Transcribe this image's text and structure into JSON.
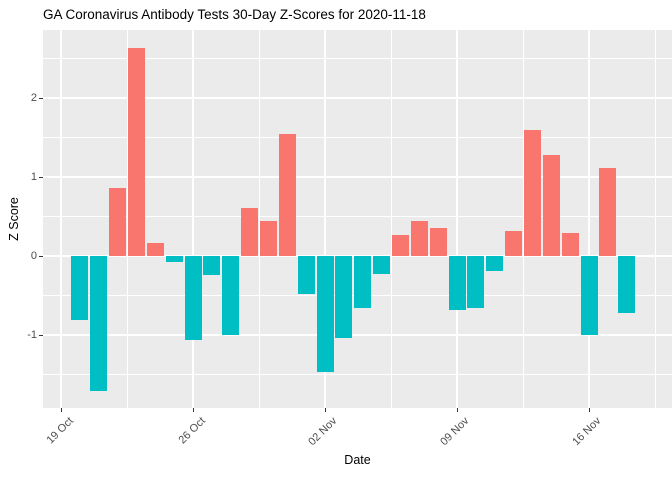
{
  "chart_data": {
    "type": "bar",
    "title": "GA Coronavirus Antibody Tests 30-Day Z-Scores for 2020-11-18",
    "xlabel": "Date",
    "ylabel": "Z Score",
    "categories": [
      "20 Oct",
      "21 Oct",
      "22 Oct",
      "23 Oct",
      "24 Oct",
      "25 Oct",
      "26 Oct",
      "27 Oct",
      "28 Oct",
      "29 Oct",
      "30 Oct",
      "31 Oct",
      "01 Nov",
      "02 Nov",
      "03 Nov",
      "04 Nov",
      "05 Nov",
      "06 Nov",
      "07 Nov",
      "08 Nov",
      "09 Nov",
      "10 Nov",
      "11 Nov",
      "12 Nov",
      "13 Nov",
      "14 Nov",
      "15 Nov",
      "16 Nov",
      "17 Nov",
      "18 Nov"
    ],
    "values": [
      -0.81,
      -1.7,
      0.86,
      2.63,
      0.17,
      -0.08,
      -1.06,
      -0.24,
      -1.0,
      0.61,
      0.44,
      1.54,
      -0.48,
      -1.46,
      -1.03,
      -0.65,
      -0.22,
      0.27,
      0.44,
      0.35,
      -0.68,
      -0.65,
      -0.19,
      0.32,
      1.6,
      1.28,
      0.29,
      -1.0,
      1.12,
      -0.72
    ],
    "x_tick_labels": [
      "19 Oct",
      "26 Oct",
      "02 Nov",
      "09 Nov",
      "16 Nov"
    ],
    "x_tick_days": [
      0,
      7,
      14,
      21,
      28
    ],
    "y_tick_labels": [
      "-1",
      "0",
      "1",
      "2"
    ],
    "y_ticks": [
      -1,
      0,
      1,
      2
    ],
    "ylim": [
      -1.92,
      2.86
    ],
    "legend": "none",
    "grid": "on",
    "colors": {
      "positive_bar": "#F8766D",
      "negative_bar": "#00BFC4",
      "panel_background": "#EBEBEB",
      "gridline": "#FFFFFF",
      "axis_text": "#4D4D4D",
      "title_text": "#000000"
    }
  }
}
